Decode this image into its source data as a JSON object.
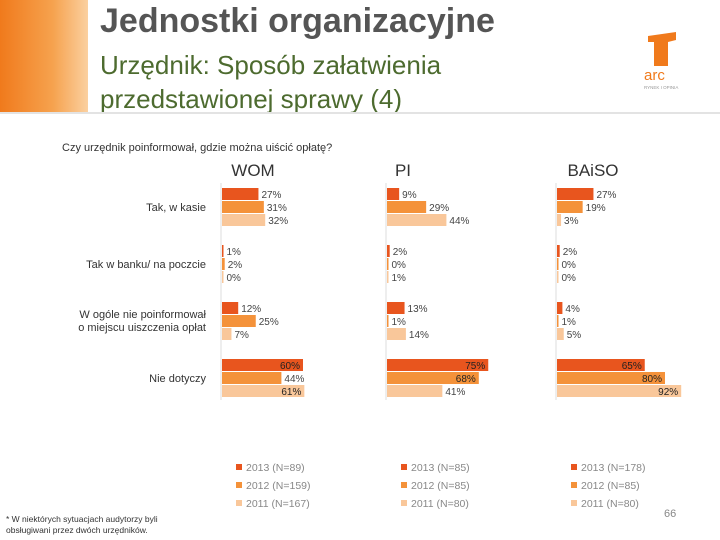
{
  "header": {
    "title": "Jednostki organizacyjne",
    "subtitle_line1": "Urzędnik: Sposób załatwienia",
    "subtitle_line2": "przedstawionej sprawy (4)",
    "logo_text": "arc",
    "logo_tagline": "RYNEK I OPINIA"
  },
  "question": "Czy urzędnik poinformował, gdzie można uiścić opłatę?",
  "footnote": "* W niektórych sytuacjach audytorzy byli obsługiwani przez dwóch urzędników.",
  "page_number": "66",
  "colors": {
    "s2013": "#e8551e",
    "s2012": "#f4923a",
    "s2011": "#f9c79a",
    "accent": "#f07a1c"
  },
  "chart_data": {
    "type": "bar",
    "orientation": "horizontal",
    "categories": [
      [
        "Tak, w kasie"
      ],
      [
        "Tak w banku/ na poczcie"
      ],
      [
        "W ogóle nie poinformował",
        "o miejscu uiszczenia opłat"
      ],
      [
        "Nie dotyczy"
      ]
    ],
    "panels": [
      {
        "title": "WOM",
        "series": [
          {
            "name": "2013 (N=89)",
            "values": [
              27,
              1,
              12,
              60
            ]
          },
          {
            "name": "2012 (N=159)",
            "values": [
              31,
              2,
              25,
              44
            ]
          },
          {
            "name": "2011 (N=167)",
            "values": [
              32,
              0,
              7,
              61
            ]
          }
        ]
      },
      {
        "title": "PI",
        "series": [
          {
            "name": "2013 (N=85)",
            "values": [
              9,
              2,
              13,
              75
            ]
          },
          {
            "name": "2012 (N=85)",
            "values": [
              29,
              0,
              1,
              68
            ]
          },
          {
            "name": "2011 (N=80)",
            "values": [
              44,
              1,
              14,
              41
            ]
          }
        ]
      },
      {
        "title": "BAiSO",
        "series": [
          {
            "name": "2013 (N=178)",
            "values": [
              27,
              2,
              4,
              65
            ]
          },
          {
            "name": "2012 (N=85)",
            "values": [
              19,
              0,
              1,
              80
            ]
          },
          {
            "name": "2011 (N=80)",
            "values": [
              3,
              0,
              5,
              92
            ]
          }
        ]
      }
    ],
    "value_suffix": "%",
    "xlim": [
      0,
      100
    ],
    "legend_position": "bottom"
  }
}
